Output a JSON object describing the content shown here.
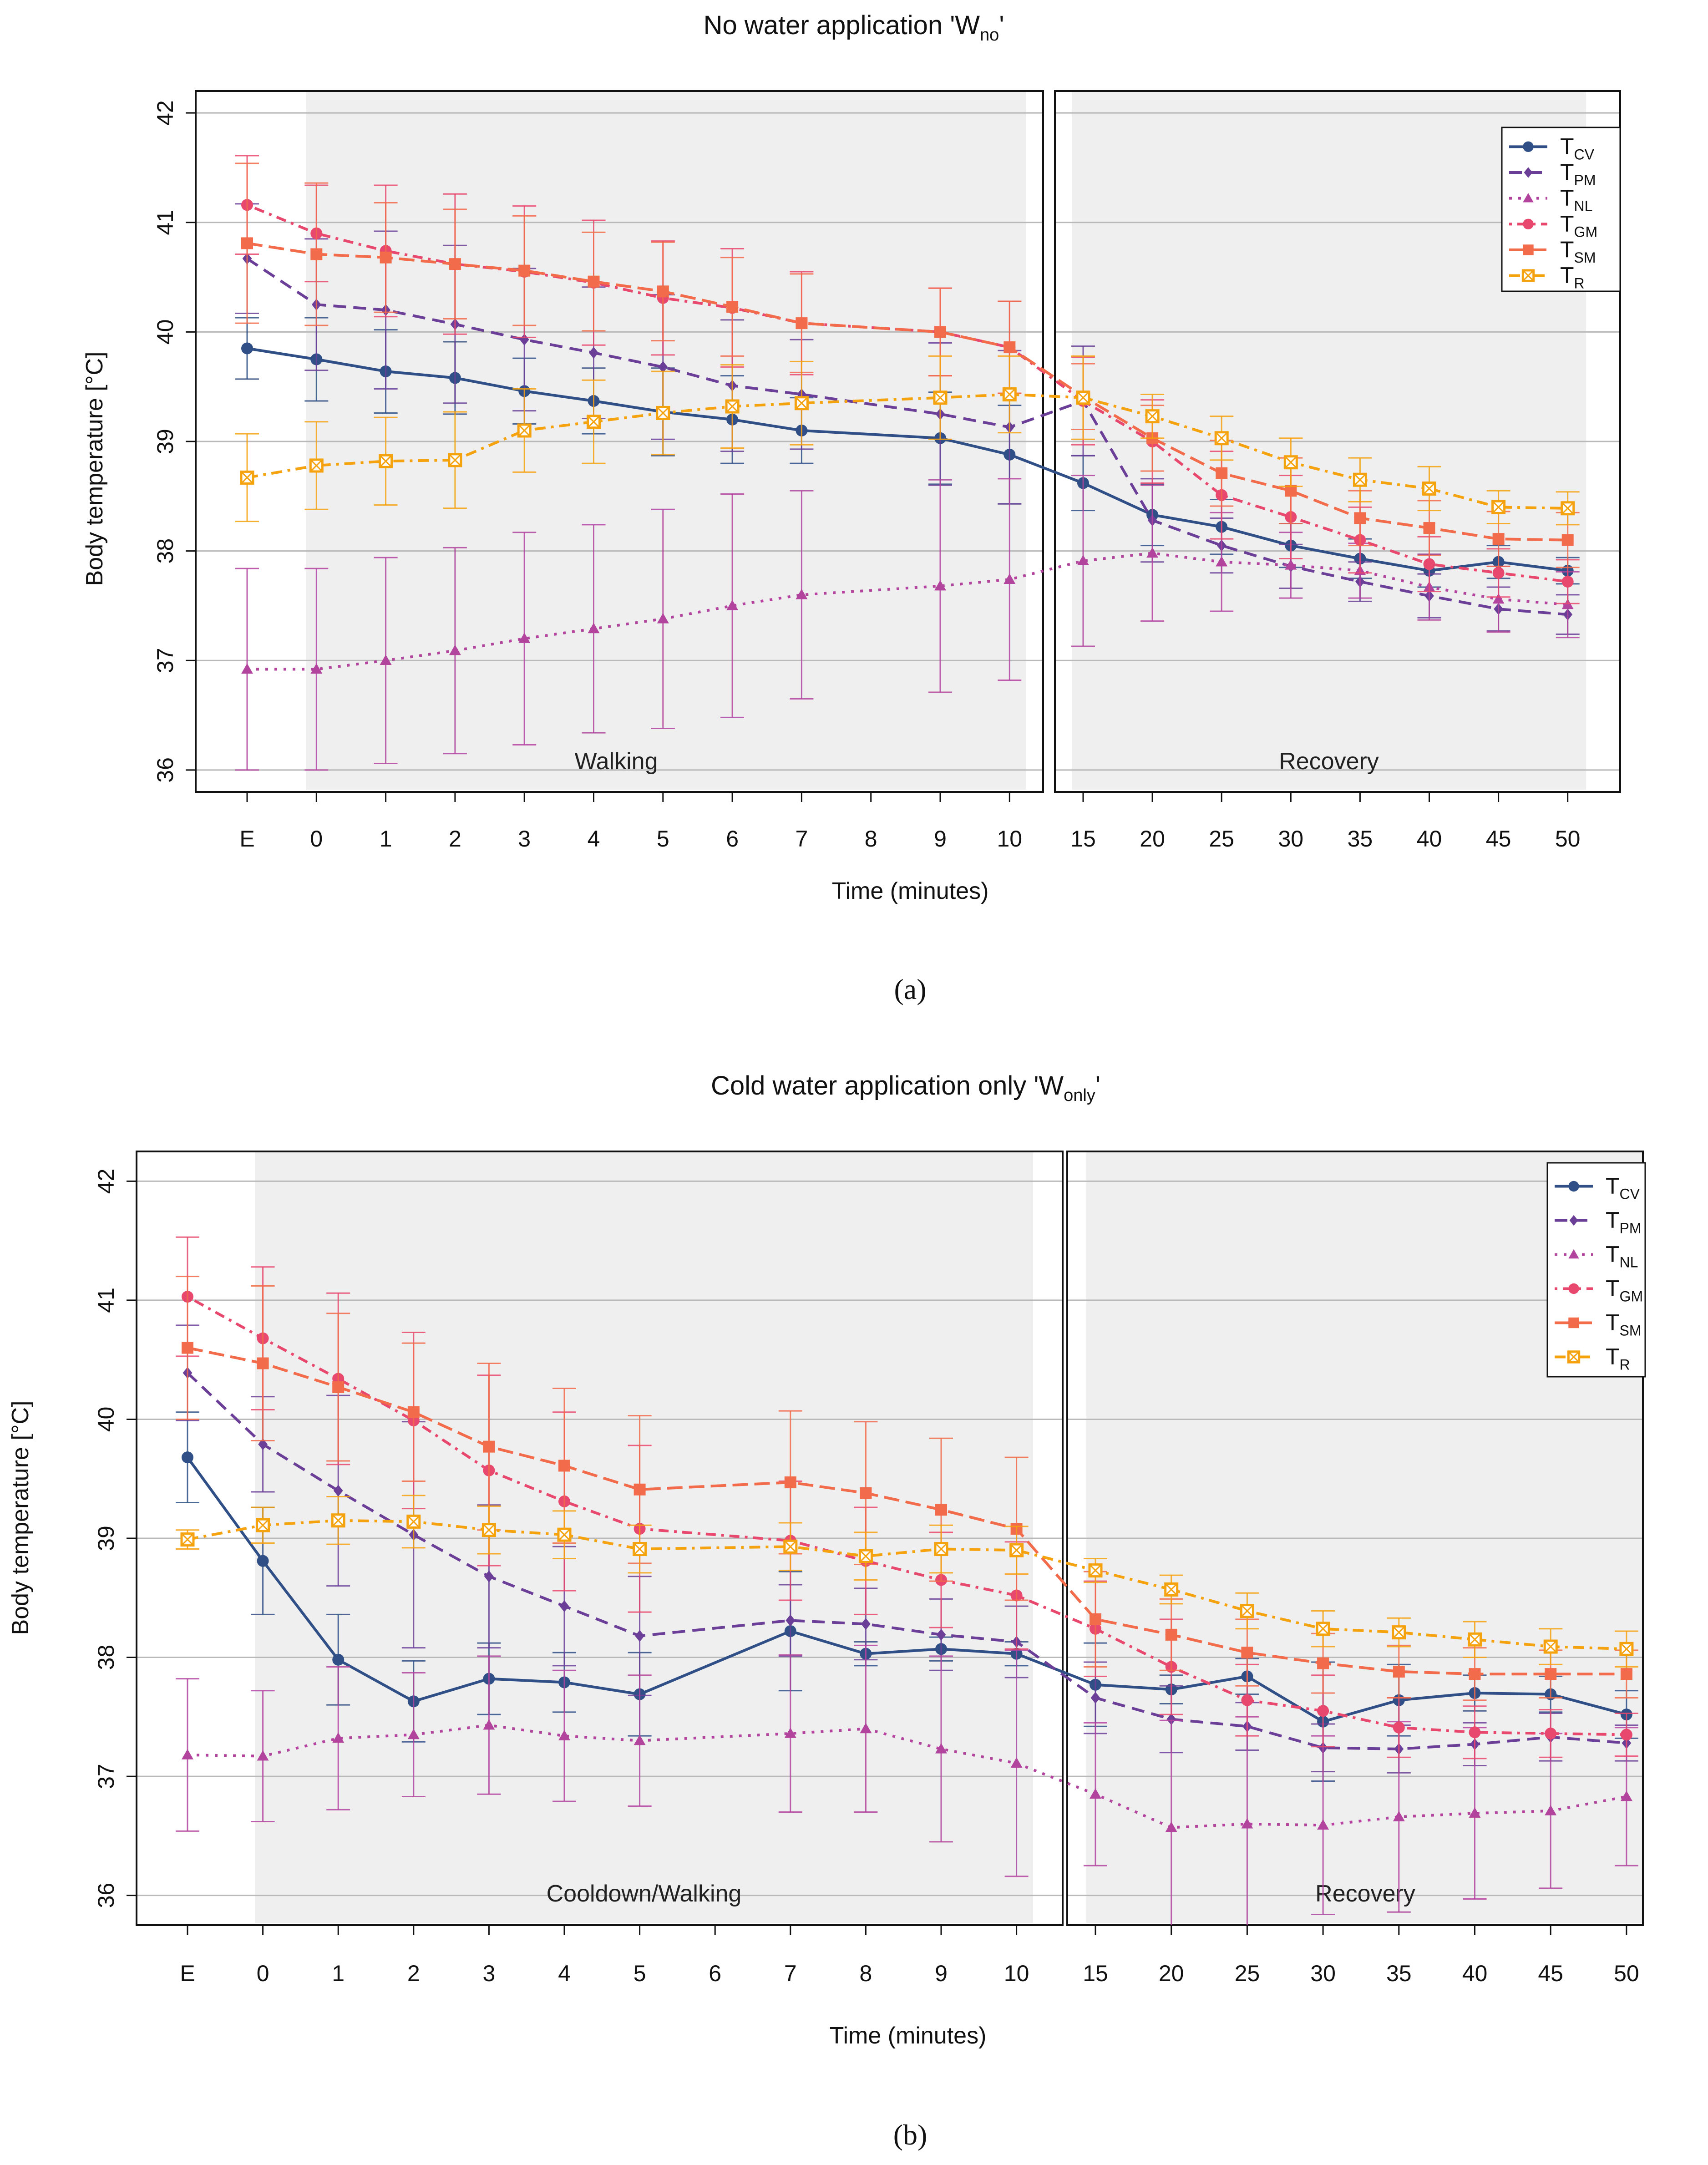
{
  "figure": {
    "panel_labels": [
      "(a)",
      "(b)"
    ],
    "series_styles": [
      {
        "key": "TCV",
        "base": "T",
        "sub": "CV",
        "color": "#2f4f86",
        "dash": "",
        "marker": "circle"
      },
      {
        "key": "TPM",
        "base": "T",
        "sub": "PM",
        "color": "#6b3f98",
        "dash": "28,16",
        "marker": "diamond"
      },
      {
        "key": "TNL",
        "base": "T",
        "sub": "NL",
        "color": "#b2449e",
        "dash": "6,14",
        "marker": "triangle"
      },
      {
        "key": "TGM",
        "base": "T",
        "sub": "GM",
        "color": "#e8486d",
        "dash": "6,12,22,12",
        "marker": "circle"
      },
      {
        "key": "TSM",
        "base": "T",
        "sub": "SM",
        "color": "#f26b4a",
        "dash": "34,14",
        "marker": "square"
      },
      {
        "key": "TR",
        "base": "T",
        "sub": "R",
        "color": "#f5a20f",
        "dash": "24,12,6,12",
        "marker": "squarecross"
      }
    ]
  },
  "chart_data": [
    {
      "type": "line",
      "title": "No water application 'Wno'",
      "title_main": "No water application 'W",
      "title_sub": "no",
      "title_end": "'",
      "xlabel": "Time (minutes)",
      "ylabel": "Body temperature [°C]",
      "ylim": [
        35.8,
        42.2
      ],
      "yticks": [
        "36",
        "37",
        "38",
        "39",
        "40",
        "41",
        "42"
      ],
      "grid": true,
      "legend_position": "top-right",
      "phases": [
        {
          "label": "Walking",
          "categories": [
            "E",
            "0",
            "1",
            "2",
            "3",
            "4",
            "5",
            "6",
            "7",
            "8",
            "9",
            "10"
          ]
        },
        {
          "label": "Recovery",
          "categories": [
            "15",
            "20",
            "25",
            "30",
            "35",
            "40",
            "45",
            "50"
          ]
        }
      ],
      "series": [
        {
          "name": "TCV",
          "walking": [
            39.85,
            39.75,
            39.64,
            39.58,
            39.46,
            39.37,
            39.27,
            39.2,
            39.1,
            null,
            39.03,
            38.88
          ],
          "walking_err": [
            0.28,
            0.38,
            0.38,
            0.33,
            0.3,
            0.3,
            0.4,
            0.4,
            0.3,
            null,
            0.42,
            0.45
          ],
          "recovery": [
            38.62,
            38.33,
            38.22,
            38.05,
            37.93,
            37.82,
            37.9,
            37.82
          ],
          "recovery_err": [
            0.25,
            0.28,
            0.25,
            0.2,
            0.18,
            0.15,
            0.15,
            0.12
          ]
        },
        {
          "name": "TPM",
          "walking": [
            40.67,
            40.25,
            40.2,
            40.07,
            39.93,
            39.81,
            39.68,
            39.51,
            39.43,
            null,
            39.25,
            39.13
          ],
          "walking_err": [
            0.5,
            0.6,
            0.72,
            0.72,
            0.65,
            0.6,
            0.66,
            0.6,
            0.5,
            null,
            0.65,
            0.7
          ],
          "recovery": [
            39.37,
            38.28,
            38.05,
            37.86,
            37.72,
            37.59,
            37.47,
            37.42
          ],
          "recovery_err": [
            0.5,
            0.38,
            0.25,
            0.2,
            0.18,
            0.2,
            0.2,
            0.18
          ]
        },
        {
          "name": "TNL",
          "walking": [
            36.92,
            36.92,
            37.0,
            37.09,
            37.2,
            37.29,
            37.38,
            37.5,
            37.6,
            null,
            37.68,
            37.74
          ],
          "walking_err": [
            0.92,
            0.92,
            0.94,
            0.94,
            0.97,
            0.95,
            1.0,
            1.02,
            0.95,
            null,
            0.97,
            0.92
          ],
          "recovery": [
            37.91,
            37.98,
            37.9,
            37.87,
            37.82,
            37.67,
            37.56,
            37.51
          ],
          "recovery_err": [
            0.78,
            0.62,
            0.45,
            0.3,
            0.25,
            0.3,
            0.3,
            0.3
          ]
        },
        {
          "name": "TGM",
          "walking": [
            41.16,
            40.9,
            40.74,
            40.62,
            40.55,
            40.45,
            40.31,
            40.22,
            40.08,
            null,
            40.0,
            39.86
          ],
          "walking_err": [
            0.45,
            0.44,
            0.6,
            0.64,
            0.6,
            0.57,
            0.52,
            0.54,
            0.47,
            null,
            0.4,
            0.42
          ],
          "recovery": [
            39.37,
            39.0,
            38.51,
            38.31,
            38.1,
            37.88,
            37.8,
            37.72
          ],
          "recovery_err": [
            0.4,
            0.38,
            0.4,
            0.38,
            0.3,
            0.25,
            0.22,
            0.2
          ]
        },
        {
          "name": "TSM",
          "walking": [
            40.81,
            40.71,
            40.68,
            40.62,
            40.56,
            40.46,
            40.37,
            40.23,
            40.08,
            null,
            40.0,
            39.86
          ],
          "walking_err": [
            0.73,
            0.65,
            0.5,
            0.5,
            0.5,
            0.45,
            0.45,
            0.45,
            0.45,
            null,
            0.4,
            0.42
          ],
          "recovery": [
            39.41,
            39.03,
            38.71,
            38.55,
            38.3,
            38.21,
            38.11,
            38.1
          ],
          "recovery_err": [
            0.3,
            0.3,
            0.3,
            0.3,
            0.25,
            0.25,
            0.25,
            0.25
          ]
        },
        {
          "name": "TR",
          "walking": [
            38.67,
            38.78,
            38.82,
            38.83,
            39.1,
            39.18,
            39.26,
            39.32,
            39.35,
            null,
            39.4,
            39.43
          ],
          "walking_err": [
            0.4,
            0.4,
            0.4,
            0.44,
            0.38,
            0.38,
            0.38,
            0.38,
            0.38,
            null,
            0.38,
            0.35
          ],
          "recovery": [
            39.4,
            39.23,
            39.03,
            38.81,
            38.65,
            38.57,
            38.4,
            38.39
          ],
          "recovery_err": [
            0.38,
            0.2,
            0.2,
            0.22,
            0.2,
            0.2,
            0.15,
            0.15
          ]
        }
      ]
    },
    {
      "type": "line",
      "title": "Cold water application only 'Wonly'",
      "title_main": "Cold water application only 'W",
      "title_sub": "only",
      "title_end": "'",
      "xlabel": "Time (minutes)",
      "ylabel": "Body temperature [°C]",
      "ylim": [
        35.75,
        42.25
      ],
      "yticks": [
        "36",
        "37",
        "38",
        "39",
        "40",
        "41",
        "42"
      ],
      "grid": true,
      "legend_position": "top-right",
      "phases": [
        {
          "label": "Cooldown/Walking",
          "categories": [
            "E",
            "0",
            "1",
            "2",
            "3",
            "4",
            "5",
            "6",
            "7",
            "8",
            "9",
            "10"
          ]
        },
        {
          "label": "Recovery",
          "categories": [
            "15",
            "20",
            "25",
            "30",
            "35",
            "40",
            "45",
            "50"
          ]
        }
      ],
      "series": [
        {
          "name": "TCV",
          "walking": [
            39.68,
            38.81,
            37.98,
            37.63,
            37.82,
            37.79,
            37.69,
            null,
            38.22,
            38.03,
            38.07,
            38.03
          ],
          "walking_err": [
            0.38,
            0.45,
            0.38,
            0.34,
            0.3,
            0.25,
            0.35,
            null,
            0.5,
            0.1,
            0.1,
            0.1
          ],
          "recovery": [
            37.77,
            37.73,
            37.84,
            37.46,
            37.64,
            37.7,
            37.69,
            37.52
          ],
          "recovery_err": [
            0.35,
            0.12,
            0.15,
            0.5,
            0.3,
            0.15,
            0.15,
            0.2
          ]
        },
        {
          "name": "TPM",
          "walking": [
            40.39,
            39.79,
            39.4,
            39.03,
            38.68,
            38.43,
            38.18,
            null,
            38.31,
            38.28,
            38.19,
            38.13
          ],
          "walking_err": [
            0.4,
            0.4,
            0.8,
            0.95,
            0.6,
            0.5,
            0.5,
            null,
            0.3,
            0.3,
            0.3,
            0.3
          ],
          "recovery": [
            37.66,
            37.48,
            37.42,
            37.24,
            37.23,
            37.27,
            37.33,
            37.28
          ],
          "recovery_err": [
            0.3,
            0.28,
            0.2,
            0.2,
            0.2,
            0.18,
            0.2,
            0.15
          ]
        },
        {
          "name": "TNL",
          "walking": [
            37.18,
            37.17,
            37.32,
            37.35,
            37.43,
            37.34,
            37.3,
            null,
            37.36,
            37.4,
            37.23,
            37.11
          ],
          "walking_err": [
            0.64,
            0.55,
            0.6,
            0.52,
            0.58,
            0.55,
            0.55,
            null,
            0.66,
            0.7,
            0.78,
            0.95
          ],
          "recovery": [
            36.85,
            36.57,
            36.6,
            36.59,
            36.66,
            36.69,
            36.71,
            36.83
          ],
          "recovery_err": [
            0.6,
            0.9,
            0.9,
            0.75,
            0.8,
            0.72,
            0.65,
            0.58
          ]
        },
        {
          "name": "TGM",
          "walking": [
            41.03,
            40.68,
            40.34,
            39.99,
            39.57,
            39.31,
            39.08,
            null,
            38.98,
            38.81,
            38.65,
            38.52
          ],
          "walking_err": [
            0.5,
            0.6,
            0.72,
            0.74,
            0.8,
            0.75,
            0.7,
            null,
            0.5,
            0.45,
            0.4,
            0.45
          ],
          "recovery": [
            38.24,
            37.92,
            37.64,
            37.55,
            37.41,
            37.37,
            37.36,
            37.35
          ],
          "recovery_err": [
            0.4,
            0.4,
            0.3,
            0.3,
            0.25,
            0.22,
            0.2,
            0.18
          ]
        },
        {
          "name": "TSM",
          "walking": [
            40.6,
            40.47,
            40.27,
            40.06,
            39.77,
            39.61,
            39.41,
            null,
            39.47,
            39.38,
            39.24,
            39.08
          ],
          "walking_err": [
            0.6,
            0.65,
            0.62,
            0.58,
            0.7,
            0.65,
            0.62,
            null,
            0.6,
            0.6,
            0.6,
            0.6
          ],
          "recovery": [
            38.32,
            38.19,
            38.04,
            37.95,
            37.88,
            37.86,
            37.86,
            37.86
          ],
          "recovery_err": [
            0.4,
            0.3,
            0.28,
            0.25,
            0.22,
            0.22,
            0.2,
            0.2
          ]
        },
        {
          "name": "TR",
          "walking": [
            38.99,
            39.11,
            39.15,
            39.14,
            39.07,
            39.03,
            38.91,
            null,
            38.93,
            38.85,
            38.91,
            38.9
          ],
          "walking_err": [
            0.08,
            0.15,
            0.2,
            0.22,
            0.2,
            0.2,
            0.2,
            null,
            0.2,
            0.2,
            0.2,
            0.2
          ],
          "recovery": [
            38.73,
            38.57,
            38.39,
            38.24,
            38.21,
            38.15,
            38.09,
            38.07
          ],
          "recovery_err": [
            0.1,
            0.12,
            0.15,
            0.15,
            0.12,
            0.15,
            0.15,
            0.15
          ]
        }
      ]
    }
  ]
}
